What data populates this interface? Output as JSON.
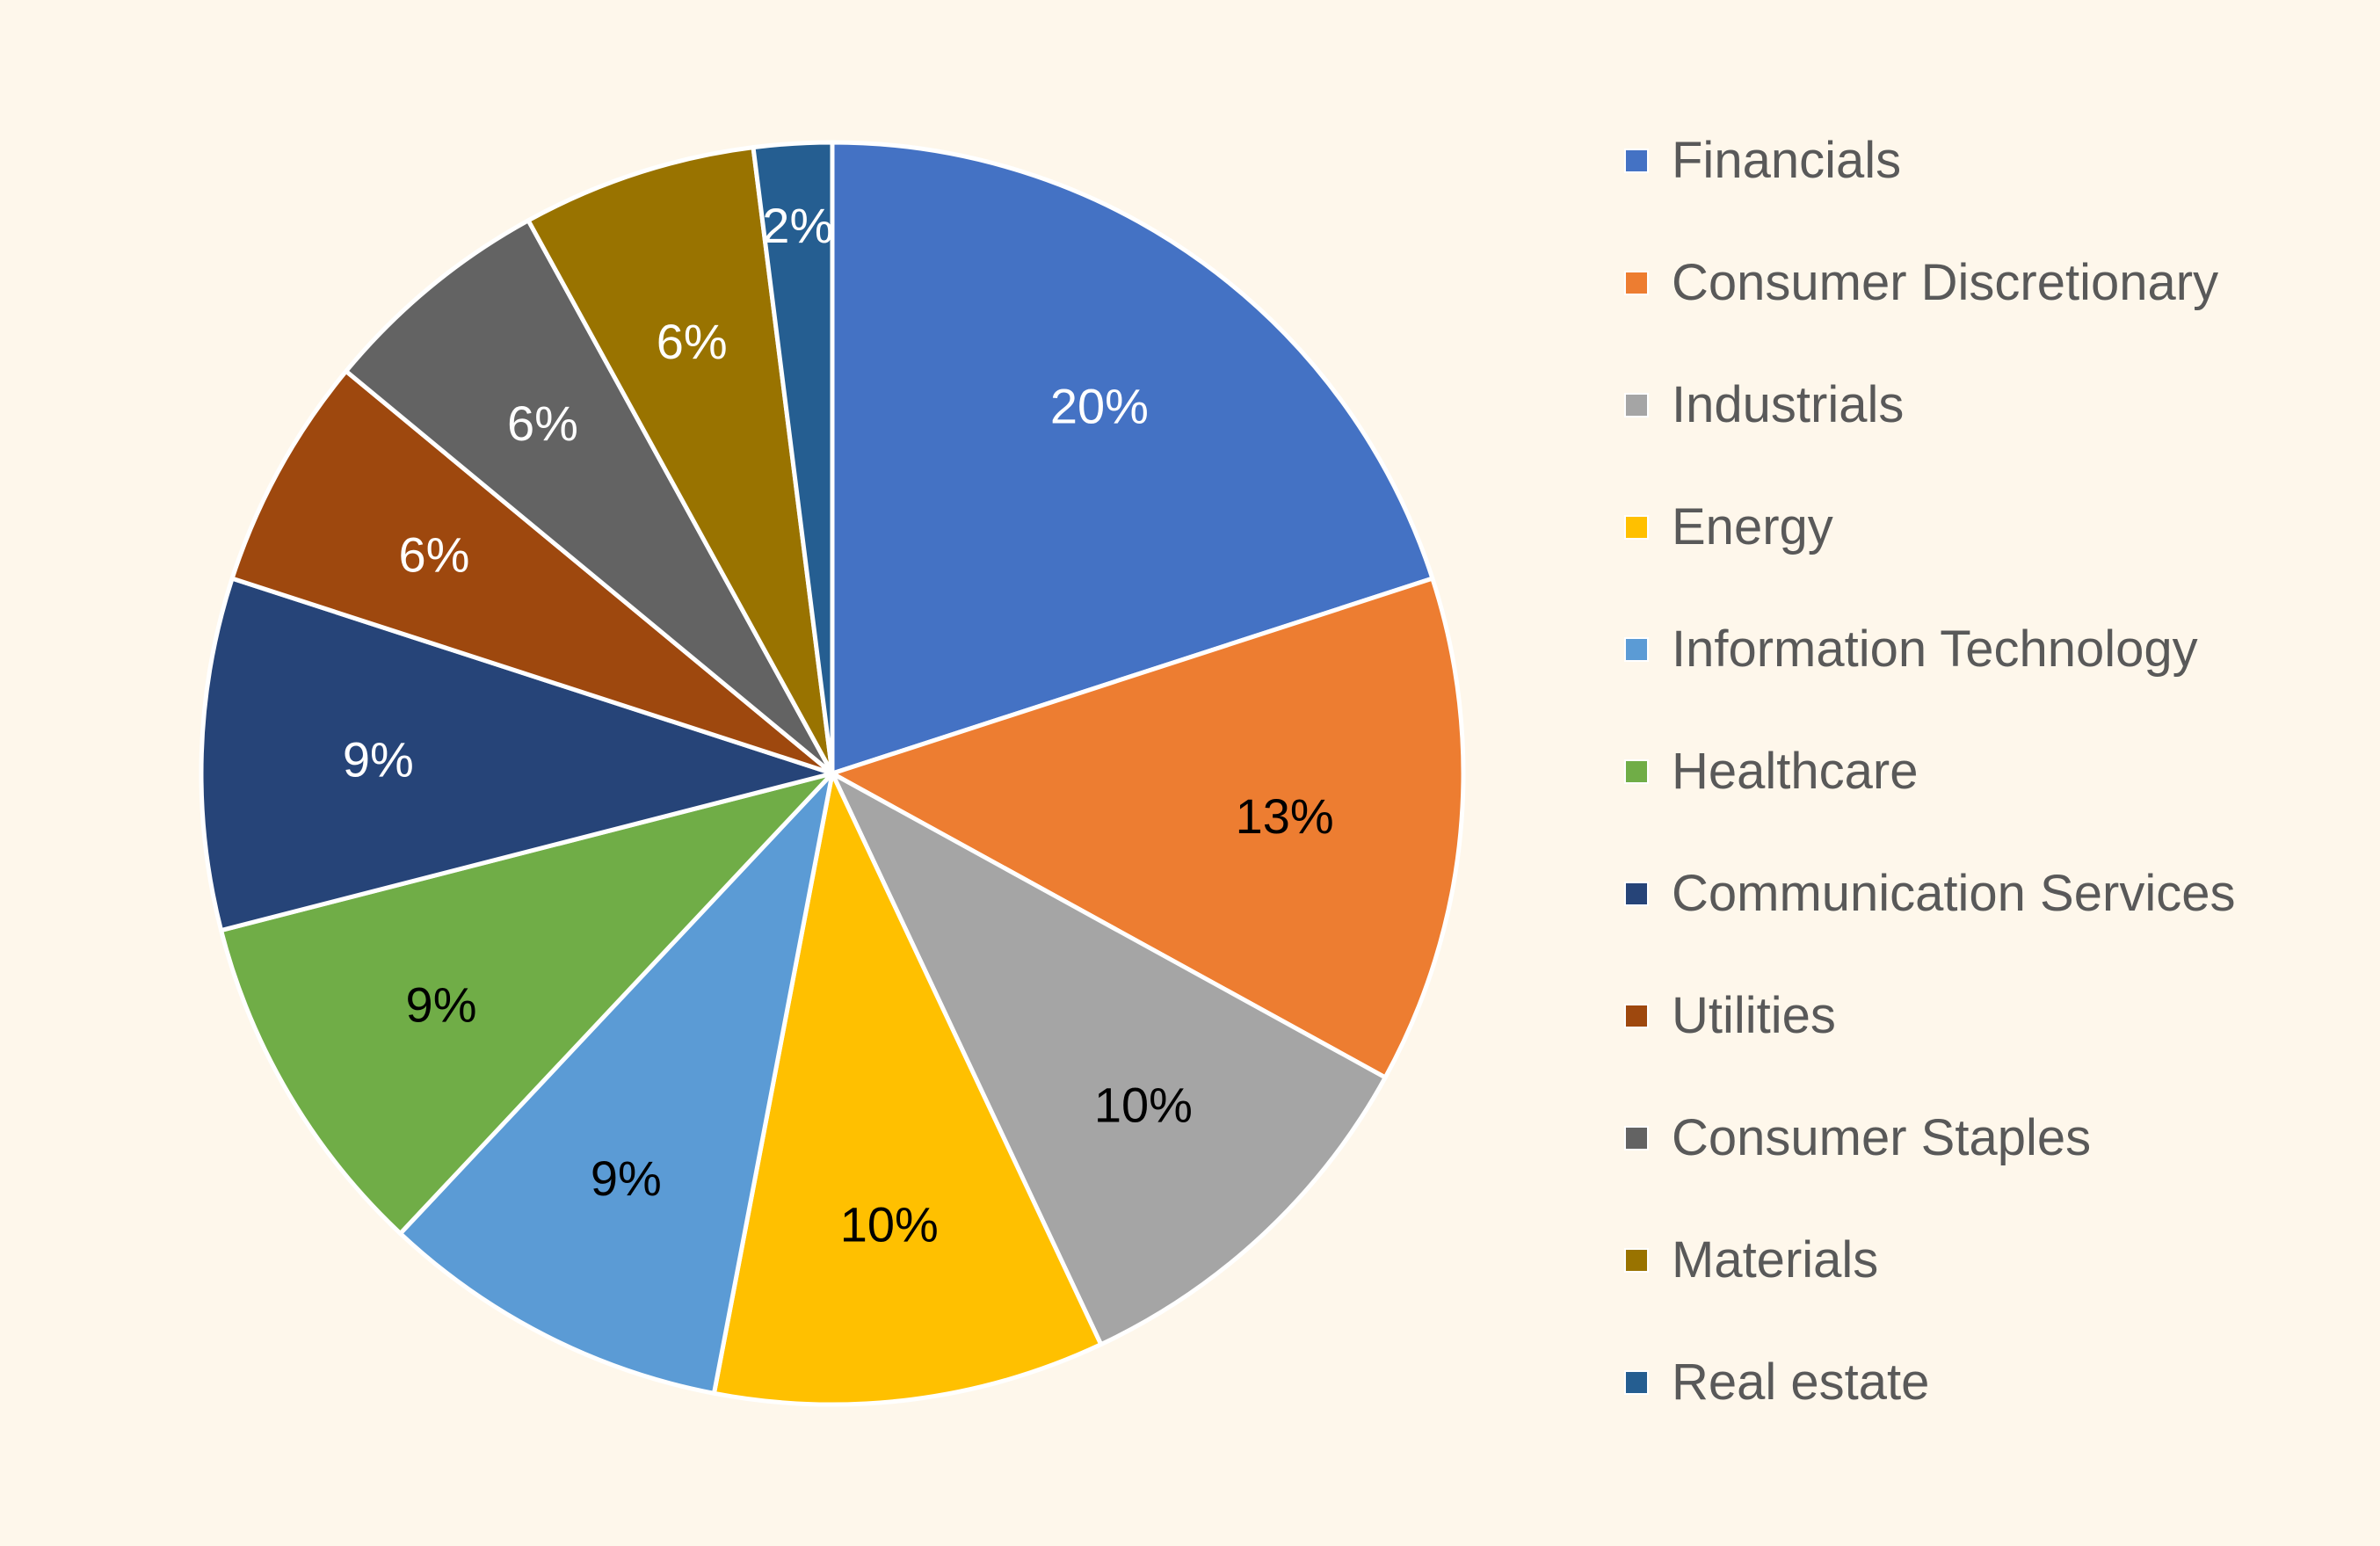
{
  "chart_data": {
    "type": "pie",
    "title": "",
    "legend_position": "right",
    "start_angle_deg": 0,
    "direction": "clockwise",
    "slices": [
      {
        "name": "Financials",
        "value": 20,
        "label": "20%",
        "color": "#4472C4",
        "label_color": "#FFFFFF"
      },
      {
        "name": "Consumer Discretionary",
        "value": 13,
        "label": "13%",
        "color": "#ED7D31",
        "label_color": "#000000"
      },
      {
        "name": "Industrials",
        "value": 10,
        "label": "10%",
        "color": "#A5A5A5",
        "label_color": "#000000"
      },
      {
        "name": "Energy",
        "value": 10,
        "label": "10%",
        "color": "#FFC000",
        "label_color": "#000000"
      },
      {
        "name": "Information Technology",
        "value": 9,
        "label": "9%",
        "color": "#5B9BD5",
        "label_color": "#000000"
      },
      {
        "name": "Healthcare",
        "value": 9,
        "label": "9%",
        "color": "#70AD47",
        "label_color": "#000000"
      },
      {
        "name": "Communication Services",
        "value": 9,
        "label": "9%",
        "color": "#264478",
        "label_color": "#FFFFFF"
      },
      {
        "name": "Utilities",
        "value": 6,
        "label": "6%",
        "color": "#9E480E",
        "label_color": "#FFFFFF"
      },
      {
        "name": "Consumer Staples",
        "value": 6,
        "label": "6%",
        "color": "#636363",
        "label_color": "#FFFFFF"
      },
      {
        "name": "Materials",
        "value": 6,
        "label": "6%",
        "color": "#997300",
        "label_color": "#FFFFFF"
      },
      {
        "name": "Real estate",
        "value": 2,
        "label": "2%",
        "color": "#255E91",
        "label_color": "#FFFFFF"
      }
    ]
  },
  "colors": {
    "background": "#FEF7EB",
    "slice_border": "#FFFFFF",
    "legend_text": "#595959"
  }
}
